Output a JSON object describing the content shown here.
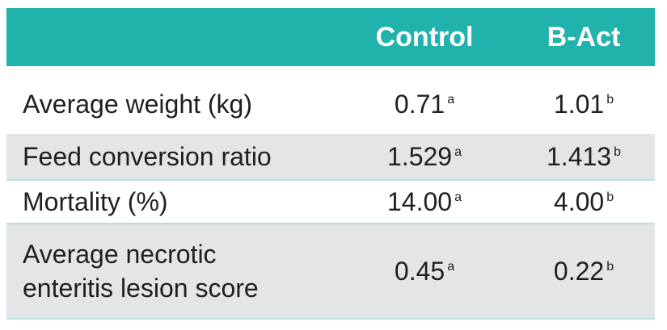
{
  "table": {
    "columns": [
      "",
      "Control",
      "B-Act"
    ],
    "rows": [
      {
        "label_lines": [
          "Average weight (kg)"
        ],
        "control": "0.71",
        "control_sup": "a",
        "bact": "1.01",
        "bact_sup": "b",
        "shaded": false
      },
      {
        "label_lines": [
          "Feed conversion ratio"
        ],
        "control": "1.529",
        "control_sup": "a",
        "bact": "1.413",
        "bact_sup": "b",
        "shaded": true
      },
      {
        "label_lines": [
          "Mortality (%)"
        ],
        "control": "14.00",
        "control_sup": "a",
        "bact": "4.00",
        "bact_sup": "b",
        "shaded": false
      },
      {
        "label_lines": [
          "Average necrotic",
          "enteritis lesion score"
        ],
        "control": "0.45",
        "control_sup": "a",
        "bact": "0.22",
        "bact_sup": "b",
        "shaded": true
      }
    ]
  },
  "colors": {
    "header_bg": "#22b2ac",
    "header_text": "#ffffff",
    "shaded_row": "#e4e5e6",
    "divider": "#b9dfdc"
  }
}
